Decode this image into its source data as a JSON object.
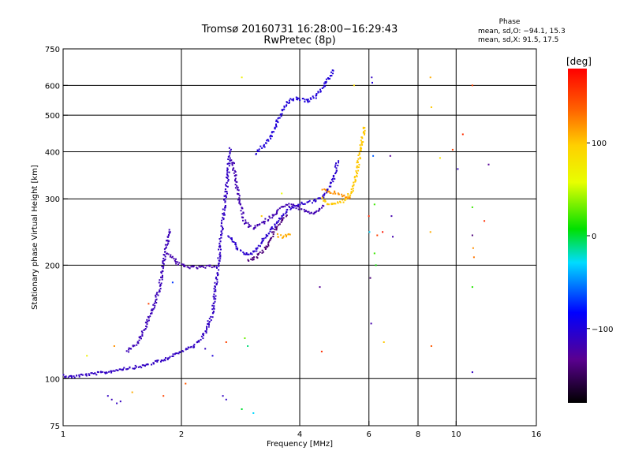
{
  "chart_data": {
    "type": "scatter",
    "title": "Tromsø 20160731 16:28:00−16:29:43",
    "subtitle": "RwPretec (8p)",
    "xlabel": "Frequency [MHz]",
    "ylabel": "Stationary phase Virtual Height [km]",
    "x_scale": "log",
    "y_scale": "log",
    "xlim": [
      1,
      16
    ],
    "ylim": [
      75,
      750
    ],
    "x_ticks": [
      1,
      2,
      4,
      6,
      8,
      10,
      16
    ],
    "x_tick_labels": [
      "1",
      "2",
      "4",
      "6",
      "8",
      "10",
      "16"
    ],
    "y_ticks": [
      75,
      100,
      200,
      300,
      400,
      500,
      600,
      750
    ],
    "y_tick_labels": [
      "75",
      "100",
      "200",
      "300",
      "400",
      "500",
      "600",
      "750"
    ],
    "x_gridlines": [
      2,
      4,
      6,
      8,
      10
    ],
    "y_gridlines": [
      100,
      200,
      300,
      400,
      500,
      600
    ],
    "grid": true,
    "stats": {
      "header": "Phase",
      "line_o": "mean, sd,O: −94.1, 15.3",
      "line_x": "mean, sd,X:  91.5, 17.5"
    },
    "colorbar": {
      "label": "[deg]",
      "range": [
        -180,
        180
      ],
      "ticks": [
        100,
        0,
        -100
      ],
      "tick_labels": [
        "100",
        "0",
        "−100"
      ]
    },
    "traces": [
      {
        "phase": -110,
        "points": [
          [
            1.0,
            102
          ],
          [
            1.05,
            101
          ],
          [
            1.1,
            102
          ],
          [
            1.2,
            103
          ],
          [
            1.3,
            104
          ],
          [
            1.4,
            106
          ],
          [
            1.5,
            107
          ],
          [
            1.6,
            108
          ],
          [
            1.7,
            110
          ],
          [
            1.8,
            112
          ],
          [
            1.9,
            115
          ],
          [
            2.0,
            118
          ]
        ]
      },
      {
        "phase": -115,
        "points": [
          [
            1.45,
            118
          ],
          [
            1.55,
            125
          ],
          [
            1.62,
            137
          ],
          [
            1.7,
            155
          ],
          [
            1.76,
            175
          ],
          [
            1.8,
            200
          ],
          [
            1.84,
            228
          ],
          [
            1.87,
            250
          ]
        ]
      },
      {
        "phase": -120,
        "points": [
          [
            1.85,
            215
          ],
          [
            1.95,
            203
          ],
          [
            2.05,
            198
          ],
          [
            2.2,
            197
          ],
          [
            2.35,
            198
          ],
          [
            2.45,
            200
          ]
        ]
      },
      {
        "phase": -110,
        "points": [
          [
            2.0,
            118
          ],
          [
            2.15,
            122
          ],
          [
            2.3,
            132
          ],
          [
            2.4,
            150
          ],
          [
            2.45,
            180
          ],
          [
            2.5,
            215
          ],
          [
            2.55,
            260
          ],
          [
            2.6,
            310
          ],
          [
            2.63,
            360
          ],
          [
            2.66,
            410
          ]
        ]
      },
      {
        "phase": -105,
        "points": [
          [
            2.65,
            240
          ],
          [
            2.8,
            220
          ],
          [
            2.95,
            212
          ],
          [
            3.1,
            220
          ],
          [
            3.3,
            240
          ],
          [
            3.5,
            260
          ],
          [
            3.7,
            278
          ],
          [
            3.9,
            288
          ],
          [
            4.1,
            292
          ],
          [
            4.3,
            295
          ],
          [
            4.5,
            300
          ],
          [
            4.7,
            315
          ],
          [
            4.9,
            345
          ],
          [
            5.0,
            380
          ]
        ]
      },
      {
        "phase": -118,
        "points": [
          [
            2.7,
            380
          ],
          [
            2.8,
            300
          ],
          [
            2.9,
            260
          ],
          [
            3.05,
            250
          ],
          [
            3.2,
            258
          ],
          [
            3.4,
            270
          ],
          [
            3.6,
            285
          ],
          [
            3.8,
            290
          ],
          [
            4.0,
            282
          ],
          [
            4.2,
            275
          ],
          [
            4.4,
            276
          ],
          [
            4.6,
            290
          ]
        ]
      },
      {
        "phase": -140,
        "points": [
          [
            2.95,
            205
          ],
          [
            3.1,
            210
          ],
          [
            3.25,
            220
          ],
          [
            3.35,
            232
          ],
          [
            3.5,
            252
          ],
          [
            3.7,
            272
          ]
        ]
      },
      {
        "phase": -100,
        "points": [
          [
            3.1,
            395
          ],
          [
            3.2,
            410
          ],
          [
            3.35,
            430
          ],
          [
            3.45,
            460
          ],
          [
            3.55,
            495
          ],
          [
            3.65,
            525
          ],
          [
            3.75,
            545
          ],
          [
            3.9,
            555
          ],
          [
            4.05,
            550
          ],
          [
            4.2,
            545
          ],
          [
            4.4,
            560
          ],
          [
            4.55,
            590
          ],
          [
            4.75,
            630
          ],
          [
            4.9,
            660
          ]
        ]
      },
      {
        "phase": 110,
        "points": [
          [
            3.5,
            240
          ],
          [
            3.65,
            237
          ],
          [
            3.8,
            245
          ]
        ]
      },
      {
        "phase": 100,
        "points": [
          [
            4.55,
            300
          ],
          [
            4.7,
            292
          ],
          [
            4.85,
            290
          ],
          [
            5.0,
            292
          ],
          [
            5.2,
            298
          ],
          [
            5.4,
            310
          ],
          [
            5.55,
            340
          ],
          [
            5.65,
            380
          ],
          [
            5.75,
            420
          ],
          [
            5.85,
            470
          ]
        ]
      },
      {
        "phase": 120,
        "points": [
          [
            4.6,
            318
          ],
          [
            4.8,
            313
          ],
          [
            5.0,
            310
          ],
          [
            5.2,
            305
          ],
          [
            5.4,
            302
          ]
        ]
      }
    ],
    "scatter": [
      {
        "x": 1.3,
        "y": 90,
        "phase": -110
      },
      {
        "x": 1.33,
        "y": 88,
        "phase": -115
      },
      {
        "x": 1.37,
        "y": 86,
        "phase": -110
      },
      {
        "x": 1.4,
        "y": 87,
        "phase": -112
      },
      {
        "x": 2.55,
        "y": 90,
        "phase": -110
      },
      {
        "x": 2.6,
        "y": 88,
        "phase": -108
      },
      {
        "x": 1.5,
        "y": 92,
        "phase": 110
      },
      {
        "x": 1.8,
        "y": 90,
        "phase": 150
      },
      {
        "x": 2.05,
        "y": 97,
        "phase": 140
      },
      {
        "x": 2.85,
        "y": 83,
        "phase": 0
      },
      {
        "x": 3.05,
        "y": 81,
        "phase": -30
      },
      {
        "x": 2.3,
        "y": 120,
        "phase": -110
      },
      {
        "x": 2.4,
        "y": 115,
        "phase": -100
      },
      {
        "x": 2.6,
        "y": 125,
        "phase": 150
      },
      {
        "x": 2.9,
        "y": 128,
        "phase": 30
      },
      {
        "x": 2.95,
        "y": 122,
        "phase": -10
      },
      {
        "x": 1.15,
        "y": 115,
        "phase": 70
      },
      {
        "x": 1.35,
        "y": 122,
        "phase": 120
      },
      {
        "x": 1.65,
        "y": 158,
        "phase": 150
      },
      {
        "x": 1.9,
        "y": 180,
        "phase": -70
      },
      {
        "x": 2.85,
        "y": 630,
        "phase": 70
      },
      {
        "x": 3.2,
        "y": 270,
        "phase": 100
      },
      {
        "x": 3.6,
        "y": 310,
        "phase": 60
      },
      {
        "x": 4.5,
        "y": 175,
        "phase": -130
      },
      {
        "x": 4.55,
        "y": 118,
        "phase": 160
      },
      {
        "x": 5.5,
        "y": 600,
        "phase": 90
      },
      {
        "x": 6.0,
        "y": 270,
        "phase": 160
      },
      {
        "x": 6.02,
        "y": 245,
        "phase": -30
      },
      {
        "x": 6.05,
        "y": 185,
        "phase": -140
      },
      {
        "x": 6.08,
        "y": 140,
        "phase": -120
      },
      {
        "x": 6.1,
        "y": 630,
        "phase": -110
      },
      {
        "x": 6.12,
        "y": 610,
        "phase": -100
      },
      {
        "x": 6.15,
        "y": 390,
        "phase": -60
      },
      {
        "x": 6.2,
        "y": 290,
        "phase": 20
      },
      {
        "x": 6.2,
        "y": 215,
        "phase": 20
      },
      {
        "x": 6.25,
        "y": 200,
        "phase": 10
      },
      {
        "x": 6.3,
        "y": 240,
        "phase": 150
      },
      {
        "x": 6.5,
        "y": 245,
        "phase": 170
      },
      {
        "x": 6.55,
        "y": 125,
        "phase": 100
      },
      {
        "x": 6.8,
        "y": 390,
        "phase": -130
      },
      {
        "x": 6.85,
        "y": 270,
        "phase": -120
      },
      {
        "x": 6.9,
        "y": 238,
        "phase": -120
      },
      {
        "x": 8.6,
        "y": 630,
        "phase": 110
      },
      {
        "x": 8.65,
        "y": 525,
        "phase": 100
      },
      {
        "x": 8.6,
        "y": 245,
        "phase": 110
      },
      {
        "x": 8.65,
        "y": 122,
        "phase": 140
      },
      {
        "x": 9.1,
        "y": 385,
        "phase": 80
      },
      {
        "x": 9.8,
        "y": 405,
        "phase": 150
      },
      {
        "x": 10.1,
        "y": 360,
        "phase": -110
      },
      {
        "x": 10.4,
        "y": 445,
        "phase": 160
      },
      {
        "x": 11.0,
        "y": 600,
        "phase": 150
      },
      {
        "x": 11.0,
        "y": 285,
        "phase": 20
      },
      {
        "x": 11.0,
        "y": 240,
        "phase": -140
      },
      {
        "x": 11.05,
        "y": 222,
        "phase": 120
      },
      {
        "x": 11.1,
        "y": 210,
        "phase": 130
      },
      {
        "x": 11.0,
        "y": 175,
        "phase": 15
      },
      {
        "x": 11.0,
        "y": 104,
        "phase": -110
      },
      {
        "x": 11.8,
        "y": 262,
        "phase": 160
      },
      {
        "x": 12.1,
        "y": 370,
        "phase": -130
      }
    ]
  }
}
